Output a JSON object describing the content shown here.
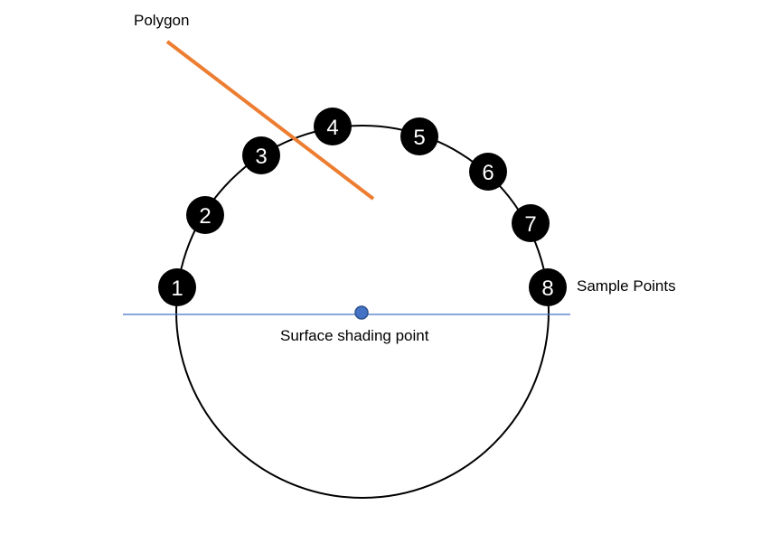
{
  "labels": {
    "polygon": "Polygon",
    "sample_points": "Sample Points",
    "surface_point": "Surface shading point"
  },
  "sample_points": [
    "1",
    "2",
    "3",
    "4",
    "5",
    "6",
    "7",
    "8"
  ],
  "colors": {
    "polygon_line": "#ED7D31",
    "surface_line": "#4472C4",
    "surface_point": "#4472C4",
    "circle": "#000000",
    "sample_fill": "#000000",
    "sample_text": "#ffffff"
  }
}
